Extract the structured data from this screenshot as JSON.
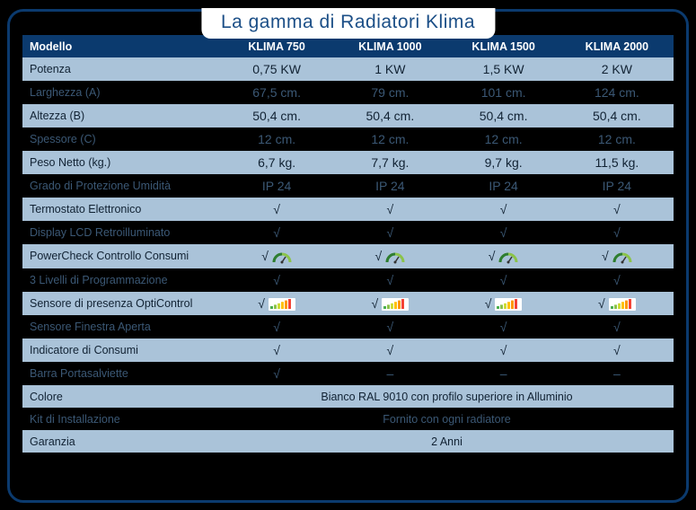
{
  "title": "La gamma di Radiatori Klima",
  "colors": {
    "panel_border": "#0b3a6e",
    "header_bg": "#0b3a6e",
    "light_row_bg": "#aac3d9",
    "light_row_text": "#112233",
    "dark_row_text": "#3b5875",
    "title_text": "#1c4f87",
    "gauge_green_dark": "#2e7d32",
    "gauge_green_light": "#8bc34a",
    "bar_colors": [
      "#4caf50",
      "#8bc34a",
      "#cddc39",
      "#ffc107",
      "#ff9800",
      "#f44336"
    ]
  },
  "columns": [
    "Modello",
    "KLIMA 750",
    "KLIMA 1000",
    "KLIMA 1500",
    "KLIMA 2000"
  ],
  "rows": [
    {
      "tone": "light",
      "label": "Potenza",
      "cells": [
        "0,75 KW",
        "1 KW",
        "1,5 KW",
        "2 KW"
      ]
    },
    {
      "tone": "dark",
      "label": "Larghezza (A)",
      "cells": [
        "67,5 cm.",
        "79 cm.",
        "101 cm.",
        "124 cm."
      ]
    },
    {
      "tone": "light",
      "label": "Altezza (B)",
      "cells": [
        "50,4 cm.",
        "50,4 cm.",
        "50,4 cm.",
        "50,4 cm."
      ]
    },
    {
      "tone": "dark",
      "label": "Spessore (C)",
      "cells": [
        "12 cm.",
        "12 cm.",
        "12 cm.",
        "12 cm."
      ]
    },
    {
      "tone": "light",
      "label": "Peso Netto (kg.)",
      "cells": [
        "6,7 kg.",
        "7,7 kg.",
        "9,7 kg.",
        "11,5 kg."
      ]
    },
    {
      "tone": "dark",
      "label": "Grado di Protezione Umidità",
      "cells": [
        "IP 24",
        "IP 24",
        "IP 24",
        "IP 24"
      ]
    },
    {
      "tone": "light",
      "label": "Termostato Elettronico",
      "cells": [
        "√",
        "√",
        "√",
        "√"
      ]
    },
    {
      "tone": "dark",
      "label": "Display LCD Retroilluminato",
      "cells": [
        "√",
        "√",
        "√",
        "√"
      ]
    },
    {
      "tone": "light",
      "label": "PowerCheck Controllo Consumi",
      "cells": [
        "√",
        "√",
        "√",
        "√"
      ],
      "icon": "gauge"
    },
    {
      "tone": "dark",
      "label": "3 Livelli di Programmazione",
      "cells": [
        "√",
        "√",
        "√",
        "√"
      ]
    },
    {
      "tone": "light",
      "label": "Sensore di presenza OptiControl",
      "cells": [
        "√",
        "√",
        "√",
        "√"
      ],
      "icon": "bars"
    },
    {
      "tone": "dark",
      "label": "Sensore Finestra Aperta",
      "cells": [
        "√",
        "√",
        "√",
        "√"
      ]
    },
    {
      "tone": "light",
      "label": "Indicatore di Consumi",
      "cells": [
        "√",
        "√",
        "√",
        "√"
      ]
    },
    {
      "tone": "dark",
      "label": "Barra Portasalviette",
      "cells": [
        "√",
        "–",
        "–",
        "–"
      ]
    },
    {
      "tone": "light",
      "label": "Colore",
      "span": "Bianco RAL 9010 con profilo superiore in Alluminio"
    },
    {
      "tone": "dark",
      "label": "Kit di Installazione",
      "span": "Fornito con ogni radiatore"
    },
    {
      "tone": "light",
      "label": "Garanzia",
      "span": "2 Anni"
    }
  ]
}
